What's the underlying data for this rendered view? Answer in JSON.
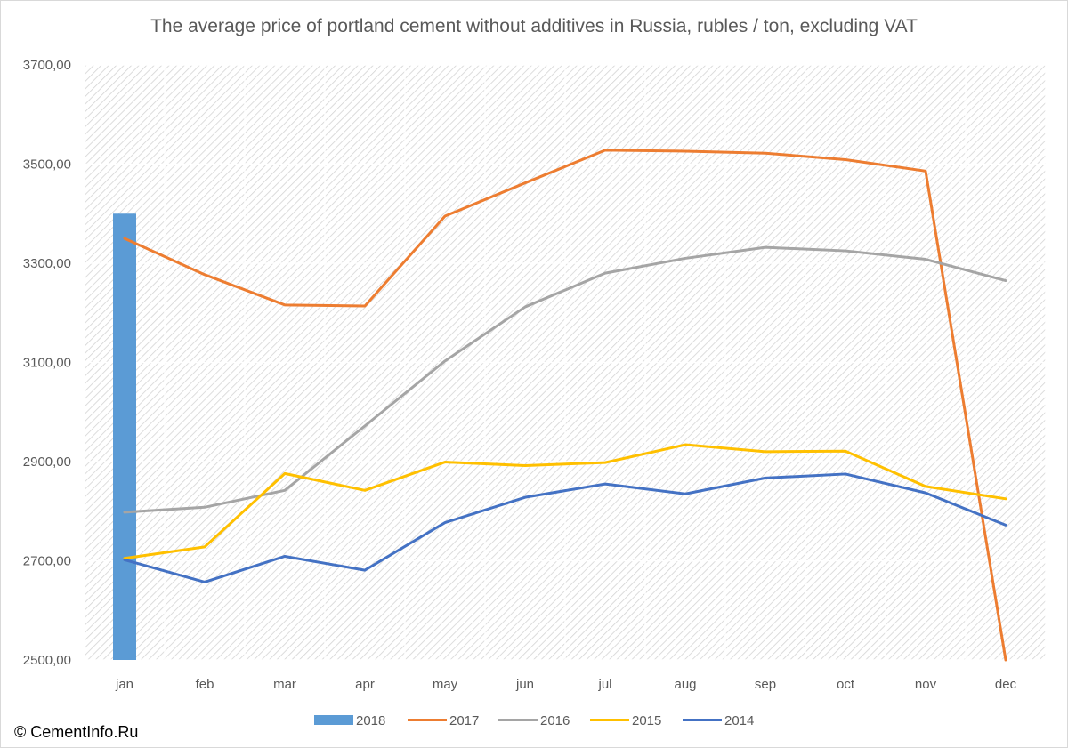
{
  "title": "The average price of portland cement without additives in Russia, rubles / ton, excluding VAT",
  "credit": "© CementInfo.Ru",
  "chart_data": {
    "type": "line",
    "title": "The average price of portland cement without additives in Russia, rubles / ton, excluding VAT",
    "xlabel": "",
    "ylabel": "",
    "categories": [
      "jan",
      "feb",
      "mar",
      "apr",
      "may",
      "jun",
      "jul",
      "aug",
      "sep",
      "oct",
      "nov",
      "dec"
    ],
    "ylim": [
      2500,
      3700
    ],
    "y_ticks": [
      2500,
      2700,
      2900,
      3100,
      3300,
      3500,
      3700
    ],
    "y_tick_labels": [
      "2500,00",
      "2700,00",
      "2900,00",
      "3100,00",
      "3300,00",
      "3500,00",
      "3700,00"
    ],
    "grid": true,
    "legend_position": "bottom",
    "series": [
      {
        "name": "2018",
        "kind": "bar",
        "color": "#5b9bd5",
        "values": [
          3400,
          null,
          null,
          null,
          null,
          null,
          null,
          null,
          null,
          null,
          null,
          null
        ]
      },
      {
        "name": "2017",
        "kind": "line",
        "color": "#ed7d31",
        "values": [
          3350,
          3277,
          3216,
          3214,
          3395,
          3462,
          3528,
          3526,
          3522,
          3509,
          3486,
          2500
        ]
      },
      {
        "name": "2016",
        "kind": "line",
        "color": "#a5a5a5",
        "values": [
          2798,
          2808,
          2842,
          2972,
          3103,
          3212,
          3280,
          3310,
          3332,
          3325,
          3308,
          3265
        ]
      },
      {
        "name": "2015",
        "kind": "line",
        "color": "#ffc000",
        "values": [
          2705,
          2728,
          2876,
          2842,
          2899,
          2892,
          2898,
          2934,
          2920,
          2921,
          2850,
          2825
        ]
      },
      {
        "name": "2014",
        "kind": "line",
        "color": "#4472c4",
        "values": [
          2702,
          2657,
          2709,
          2681,
          2777,
          2828,
          2855,
          2835,
          2867,
          2875,
          2837,
          2772
        ]
      }
    ]
  }
}
